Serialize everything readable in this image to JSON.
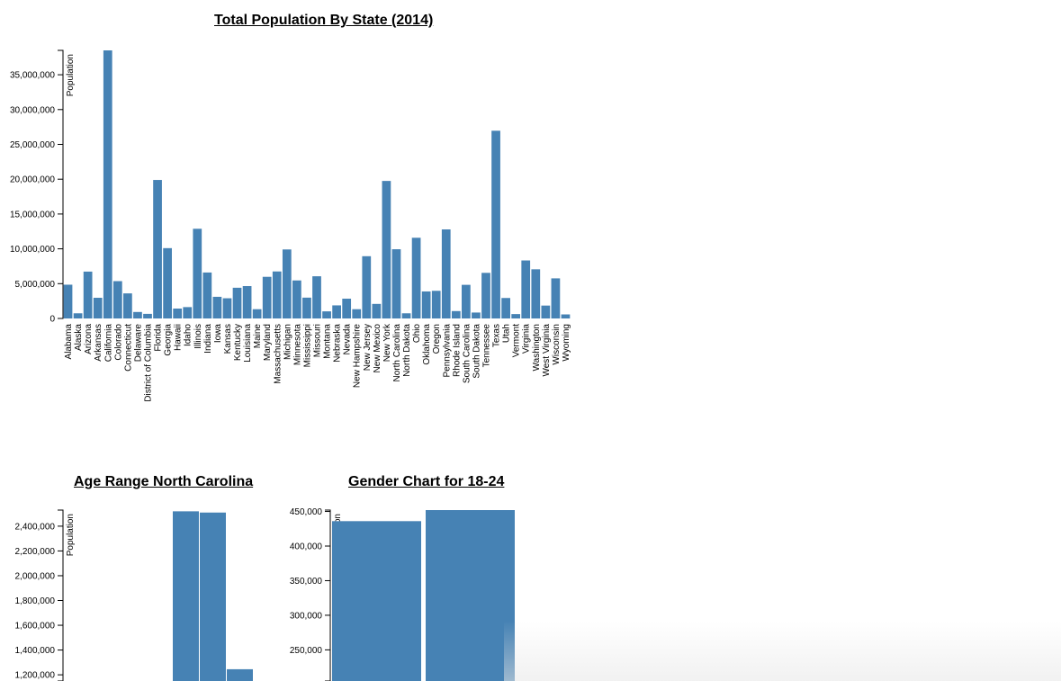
{
  "chart_data": [
    {
      "type": "bar",
      "title": "Total Population By State (2014)",
      "ylabel": "Population",
      "xlabel": "",
      "ylim": [
        0,
        38500000
      ],
      "yticks": [
        0,
        5000000,
        10000000,
        15000000,
        20000000,
        25000000,
        30000000,
        35000000
      ],
      "ytick_labels": [
        "0",
        "5,000,000",
        "10,000,000",
        "15,000,000",
        "20,000,000",
        "25,000,000",
        "30,000,000",
        "35,000,000"
      ],
      "categories": [
        "Alabama",
        "Alaska",
        "Arizona",
        "Arkansas",
        "California",
        "Colorado",
        "Connecticut",
        "Delaware",
        "District of Columbia",
        "Florida",
        "Georgia",
        "Hawaii",
        "Idaho",
        "Illinois",
        "Indiana",
        "Iowa",
        "Kansas",
        "Kentucky",
        "Louisiana",
        "Maine",
        "Maryland",
        "Massachusetts",
        "Michigan",
        "Minnesota",
        "Mississippi",
        "Missouri",
        "Montana",
        "Nebraska",
        "Nevada",
        "New Hampshire",
        "New Jersey",
        "New Mexico",
        "New York",
        "North Carolina",
        "North Dakota",
        "Ohio",
        "Oklahoma",
        "Oregon",
        "Pennsylvania",
        "Rhode Island",
        "South Carolina",
        "South Dakota",
        "Tennessee",
        "Texas",
        "Utah",
        "Vermont",
        "Virginia",
        "Washington",
        "West Virginia",
        "Wisconsin",
        "Wyoming"
      ],
      "values": [
        4850000,
        740000,
        6730000,
        2970000,
        38800000,
        5360000,
        3600000,
        930000,
        660000,
        19890000,
        10100000,
        1420000,
        1630000,
        12880000,
        6600000,
        3110000,
        2900000,
        4410000,
        4650000,
        1330000,
        5980000,
        6750000,
        9910000,
        5460000,
        2990000,
        6060000,
        1020000,
        1880000,
        2840000,
        1330000,
        8940000,
        2090000,
        19750000,
        9940000,
        740000,
        11590000,
        3880000,
        3970000,
        12790000,
        1060000,
        4830000,
        850000,
        6550000,
        26960000,
        2940000,
        630000,
        8330000,
        7060000,
        1850000,
        5760000,
        580000
      ]
    },
    {
      "type": "bar",
      "title": "Age Range North Carolina",
      "ylabel": "Population",
      "xlabel": "",
      "ylim": [
        1150000,
        2530000
      ],
      "yticks": [
        1200000,
        1400000,
        1600000,
        1800000,
        2000000,
        2200000,
        2400000
      ],
      "ytick_labels": [
        "1,200,000",
        "1,400,000",
        "1,600,000",
        "1,800,000",
        "2,000,000",
        "2,200,000",
        "2,400,000"
      ],
      "values": [
        2520000,
        2510000,
        1245000
      ]
    },
    {
      "type": "bar",
      "title": "Gender Chart for 18-24",
      "ylabel": "tion",
      "xlabel": "",
      "ylim": [
        205000,
        452000
      ],
      "yticks": [
        250000,
        300000,
        350000,
        400000,
        450000
      ],
      "ytick_labels": [
        "250,000",
        "300,000",
        "350,000",
        "400,000",
        "450,000"
      ],
      "values": [
        436000,
        455000
      ]
    }
  ]
}
